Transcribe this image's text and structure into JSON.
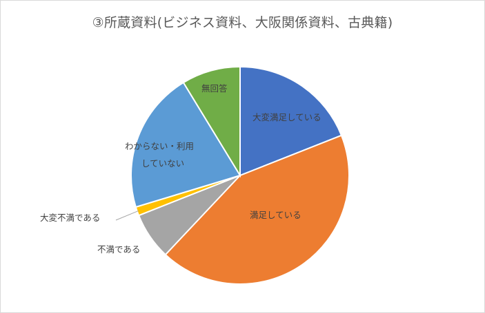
{
  "chart_data": {
    "type": "pie",
    "title": "③所蔵資料(ビジネス資料、大阪関係資料、古典籍)",
    "slices": [
      {
        "label": "大変満足している",
        "value": 19,
        "color": "#4472c4"
      },
      {
        "label": "満足している",
        "value": 43,
        "color": "#ed7d31"
      },
      {
        "label": "不満である",
        "value": 7,
        "color": "#a5a5a5"
      },
      {
        "label": "大変不満である",
        "value": 1.3,
        "color": "#ffc000"
      },
      {
        "label": "わからない・利用していない",
        "value": 21,
        "color": "#5b9bd5"
      },
      {
        "label": "無回答",
        "value": 8.7,
        "color": "#70ad47"
      }
    ],
    "label_lines": {
      "s4a": "わからない・利用",
      "s4b": "していない"
    },
    "start_angle_deg": 0,
    "direction": "clockwise"
  }
}
